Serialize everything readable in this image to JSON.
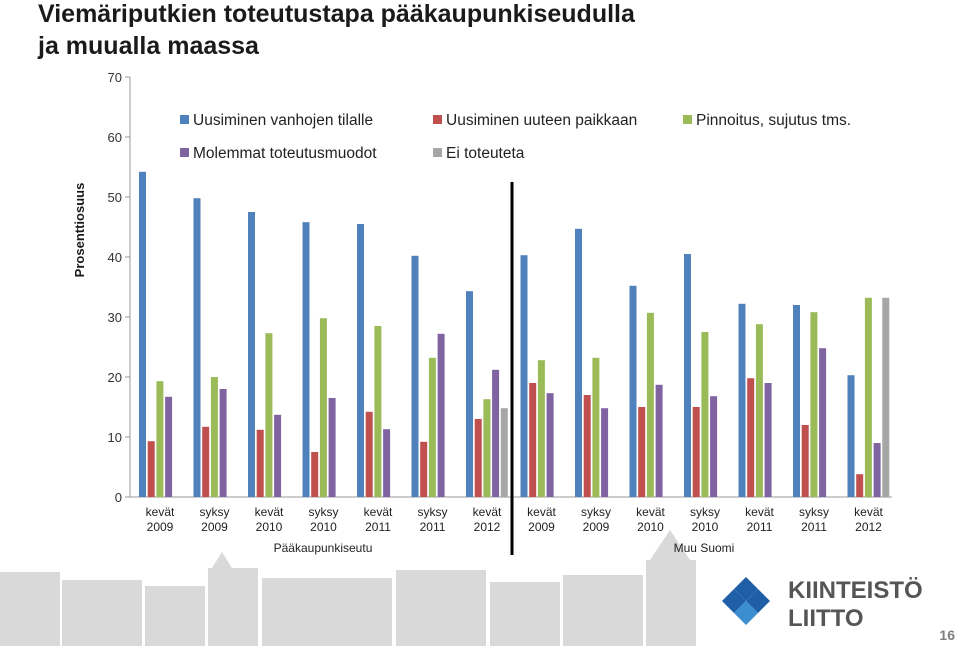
{
  "chart_data": {
    "type": "bar",
    "title": [
      "Viemäriputkien toteutustapa pääkaupunkiseudulla",
      "ja muualla maassa"
    ],
    "y_label": "Prosenttiosuus",
    "ylim": [
      0,
      70
    ],
    "yticks": [
      0,
      10,
      20,
      30,
      40,
      50,
      60,
      70
    ],
    "grid": false,
    "categories": [
      [
        "kevät",
        "2009"
      ],
      [
        "syksy",
        "2009"
      ],
      [
        "kevät",
        "2010"
      ],
      [
        "syksy",
        "2010"
      ],
      [
        "kevät",
        "2011"
      ],
      [
        "syksy",
        "2011"
      ],
      [
        "kevät",
        "2012"
      ],
      [
        "kevät",
        "2009"
      ],
      [
        "syksy",
        "2009"
      ],
      [
        "kevät",
        "2010"
      ],
      [
        "syksy",
        "2010"
      ],
      [
        "kevät",
        "2011"
      ],
      [
        "syksy",
        "2011"
      ],
      [
        "kevät",
        "2012"
      ]
    ],
    "group_labels": [
      "Pääkaupunkiseutu",
      "Muu Suomi"
    ],
    "series": [
      {
        "name": "Uusiminen vanhojen tilalle",
        "color": "#4f81bd",
        "values": [
          54.2,
          49.8,
          47.5,
          45.8,
          45.5,
          40.2,
          34.3,
          40.3,
          44.7,
          35.2,
          40.5,
          32.2,
          32.0,
          20.3
        ]
      },
      {
        "name": "Uusiminen uuteen paikkaan",
        "color": "#c0504d",
        "values": [
          9.3,
          11.7,
          11.2,
          7.5,
          14.2,
          9.2,
          13.0,
          19.0,
          17.0,
          15.0,
          15.0,
          19.8,
          12.0,
          3.8
        ]
      },
      {
        "name": "Pinnoitus, sujutus tms.",
        "color": "#9bbb59",
        "values": [
          19.3,
          20.0,
          27.3,
          29.8,
          28.5,
          23.2,
          16.3,
          22.8,
          23.2,
          30.7,
          27.5,
          28.8,
          30.8,
          33.2
        ]
      },
      {
        "name": "Molemmat toteutusmuodot",
        "color": "#8064a2",
        "values": [
          16.7,
          18.0,
          13.7,
          16.5,
          11.3,
          27.2,
          21.2,
          17.3,
          14.8,
          18.7,
          16.8,
          19.0,
          24.8,
          9.0
        ]
      },
      {
        "name": "Ei toteuteta",
        "color": "#a6a6a6",
        "values": [
          null,
          null,
          null,
          null,
          null,
          null,
          14.8,
          null,
          null,
          null,
          null,
          null,
          null,
          33.2
        ]
      }
    ]
  },
  "footer": {
    "logo_lines": [
      "KIINTEISTÖ",
      "LIITTO"
    ],
    "page_number": "16"
  }
}
